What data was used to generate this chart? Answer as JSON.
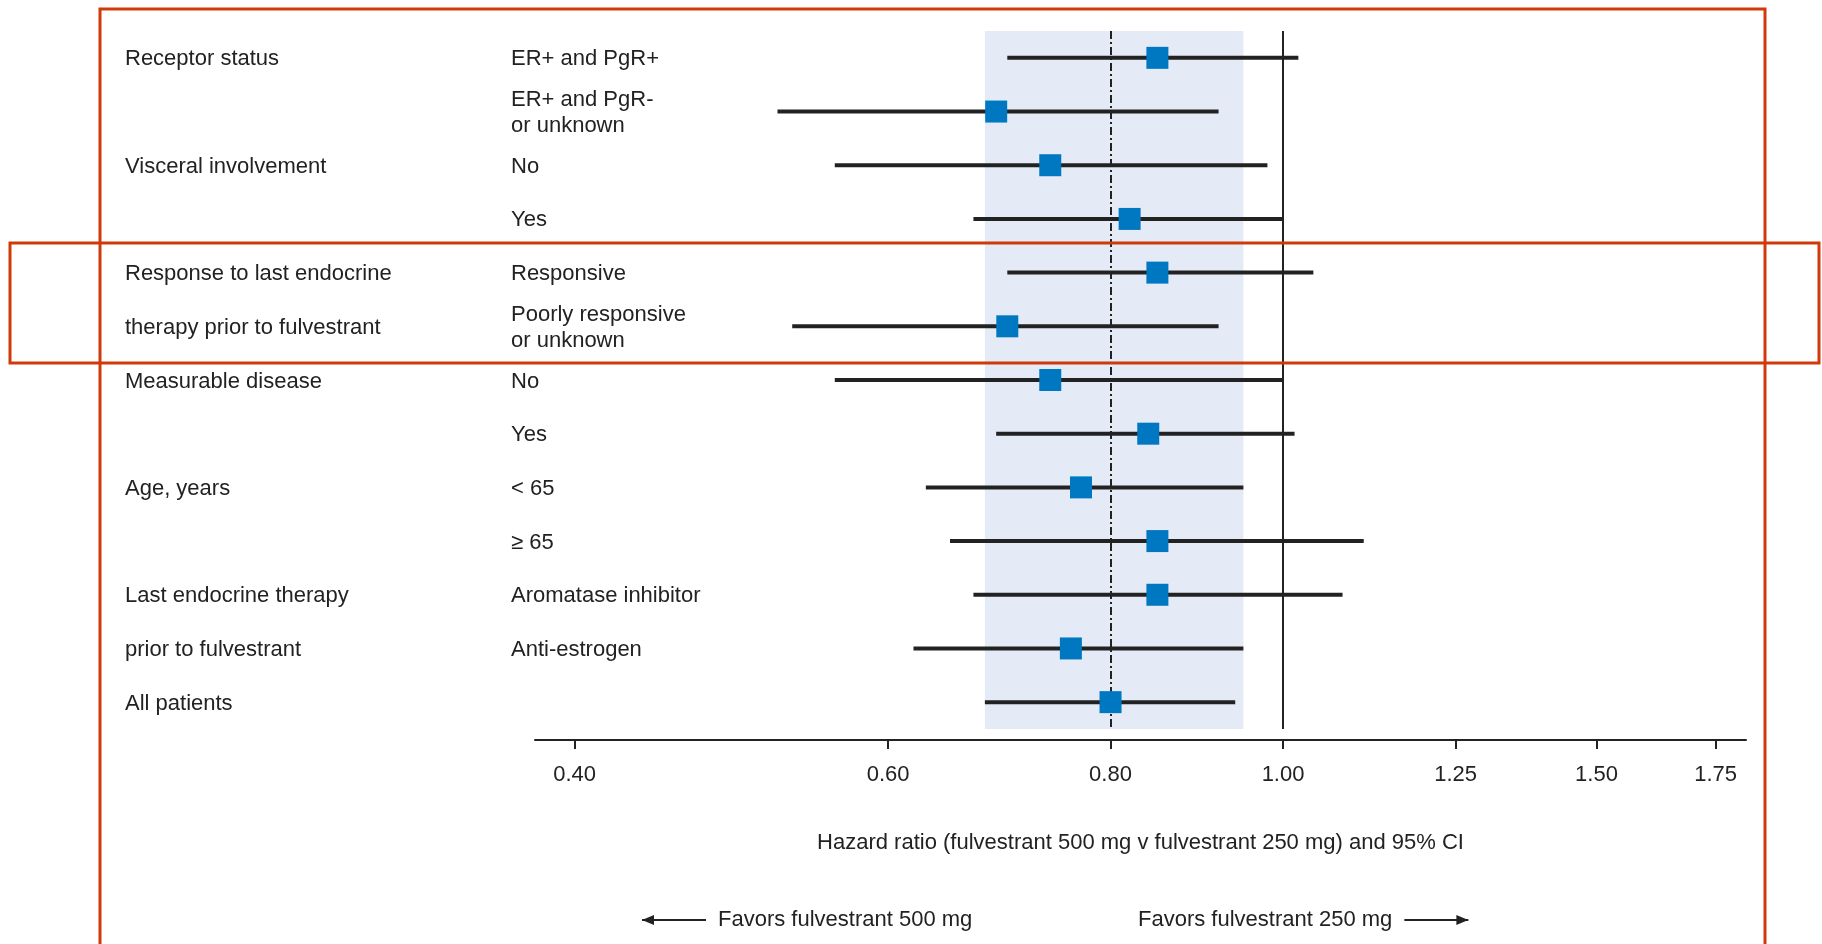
{
  "chart_data": {
    "type": "scatter",
    "orientation": "horizontal",
    "log": "x",
    "marker": "square",
    "color": "#0078c1",
    "categories": [
      "ER+ and PgR+",
      "ER+ and PgR-\nor unknown",
      "No",
      "Yes",
      "Responsive",
      "Poorly responsive\nor unknown",
      "No",
      "Yes",
      "< 65",
      "≥ 65",
      "Aromatase inhibitor",
      "Anti-estrogen",
      null
    ],
    "y2_categories": [
      "Receptor status",
      null,
      "Visceral involvement",
      null,
      "Response to last endocrine",
      "therapy prior to fulvestrant",
      "Measurable disease",
      null,
      "Age, years",
      null,
      "Last endocrine therapy",
      "prior to fulvestrant",
      "All patients"
    ],
    "values": [
      0.85,
      0.69,
      0.74,
      0.82,
      0.85,
      0.7,
      0.74,
      0.84,
      0.77,
      0.85,
      0.85,
      0.76,
      0.8
    ],
    "errors": [
      [
        0.7,
        1.02
      ],
      [
        0.52,
        0.92
      ],
      [
        0.56,
        0.98
      ],
      [
        0.67,
        1.0
      ],
      [
        0.7,
        1.04
      ],
      [
        0.53,
        0.92
      ],
      [
        0.56,
        1.0
      ],
      [
        0.69,
        1.015
      ],
      [
        0.63,
        0.95
      ],
      [
        0.65,
        1.11
      ],
      [
        0.67,
        1.08
      ],
      [
        0.62,
        0.95
      ],
      [
        0.68,
        0.94
      ]
    ],
    "xlim": [
      0.38,
      1.82
    ],
    "xticks": [
      {
        "value": 0.4,
        "label": "0.40"
      },
      {
        "value": 0.6,
        "label": "0.60"
      },
      {
        "value": 0.8,
        "label": "0.80"
      },
      {
        "value": 1,
        "label": "1.00"
      },
      1.25,
      {
        "value": 1.5,
        "label": "1.50"
      },
      1.75
    ],
    "xlabel": "Hazard ratio (fulvestrant 500 mg v fulvestrant 250 mg) and 95% CI",
    "ref_lines": [
      {
        "axis": "x",
        "value": 0.8,
        "line_style": "dashed",
        "color": "#222222"
      },
      {
        "axis": "x",
        "value": 1,
        "line_style": "solid",
        "color": "#222222"
      }
    ],
    "bands": [
      {
        "axis": "x",
        "from": 0.68,
        "to": 0.95,
        "color": "#e4eaf6"
      }
    ],
    "annotations": [
      "Favors fulvestrant 500 mg",
      "Favors fulvestrant 250 mg"
    ]
  }
}
